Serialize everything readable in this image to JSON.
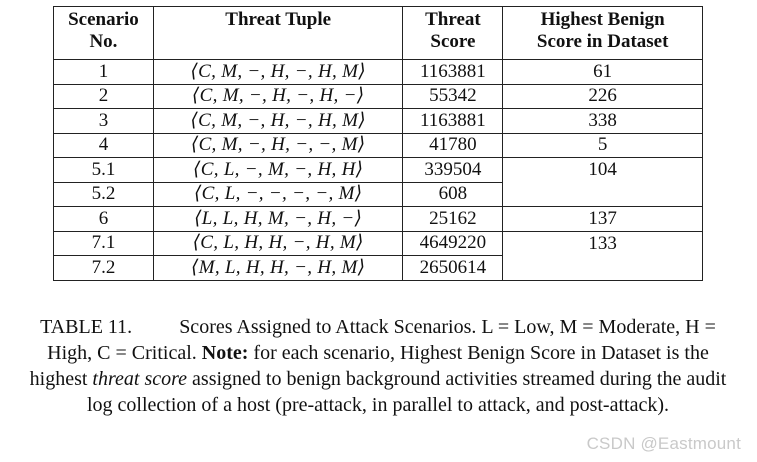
{
  "table": {
    "headers": {
      "scenario": [
        "Scenario",
        "No."
      ],
      "tuple": "Threat Tuple",
      "score": [
        "Threat",
        "Score"
      ],
      "benign": [
        "Highest Benign",
        "Score in Dataset"
      ]
    },
    "rows": [
      {
        "scenario": "1",
        "tuple": "⟨C, M, −, H, −, H, M⟩",
        "score": "1163881",
        "benign": "61"
      },
      {
        "scenario": "2",
        "tuple": "⟨C, M, −, H, −, H, −⟩",
        "score": "55342",
        "benign": "226"
      },
      {
        "scenario": "3",
        "tuple": "⟨C, M, −, H, −, H, M⟩",
        "score": "1163881",
        "benign": "338"
      },
      {
        "scenario": "4",
        "tuple": "⟨C, M, −, H, −, −, M⟩",
        "score": "41780",
        "benign": "5"
      },
      {
        "scenario": "5.1",
        "tuple": "⟨C, L, −, M, −, H, H⟩",
        "score": "339504",
        "benign": "104"
      },
      {
        "scenario": "5.2",
        "tuple": "⟨C, L, −, −, −, −, M⟩",
        "score": "608",
        "benign": ""
      },
      {
        "scenario": "6",
        "tuple": "⟨L, L, H, M, −, H, −⟩",
        "score": "25162",
        "benign": "137"
      },
      {
        "scenario": "7.1",
        "tuple": "⟨C, L, H, H, −, H, M⟩",
        "score": "4649220",
        "benign": "133"
      },
      {
        "scenario": "7.2",
        "tuple": "⟨M, L, H, H, −, H, M⟩",
        "score": "2650614",
        "benign": ""
      }
    ]
  },
  "caption": {
    "label": "TABLE 11.",
    "text1": "Scores Assigned to Attack Scenarios. L = Low, M = Moderate, H = High, C = Critical.",
    "note_label": "Note:",
    "text2": "for each scenario, Highest Benign Score in Dataset is the highest",
    "em": "threat score",
    "text3": "assigned to benign background activities streamed during the audit log collection of a host (pre-attack, in parallel to attack, and post-attack)."
  },
  "watermark": "CSDN @Eastmount"
}
